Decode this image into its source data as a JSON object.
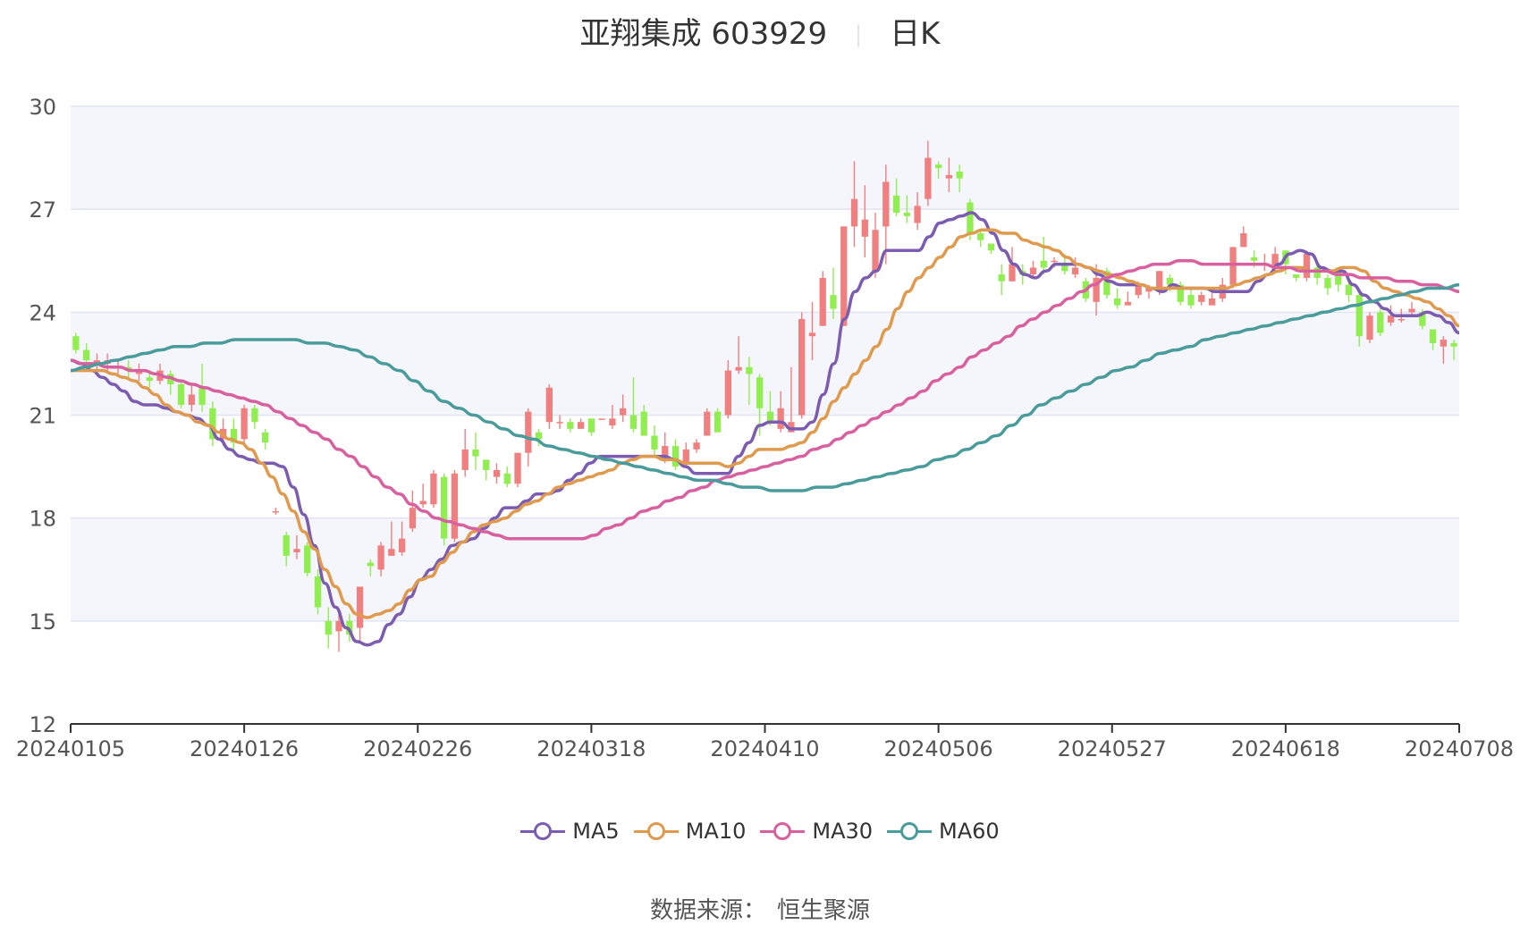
{
  "header": {
    "name": "亚翔集成 603929",
    "period": "日K"
  },
  "source": {
    "label": "数据来源：",
    "value": "恒生聚源"
  },
  "chart_data": {
    "type": "candlestick",
    "y_ticks": [
      12,
      15,
      18,
      21,
      24,
      27,
      30
    ],
    "ylim": [
      12,
      30
    ],
    "x_tick_labels": [
      "20240105",
      "20240126",
      "20240226",
      "20240318",
      "20240410",
      "20240506",
      "20240527",
      "20240618",
      "20240708"
    ],
    "colors": {
      "up": "#f08080",
      "down": "#90ee50",
      "band": "#f5f6fb",
      "grid": "#e0e3f3",
      "axis": "#333333"
    },
    "candles": [
      [
        23.3,
        22.9,
        23.4,
        22.8
      ],
      [
        22.9,
        22.6,
        23.1,
        22.4
      ],
      [
        22.5,
        22.6,
        22.8,
        22.3
      ],
      [
        22.5,
        22.6,
        22.8,
        22.3
      ],
      [
        22.4,
        22.4,
        22.6,
        22.2
      ],
      [
        22.4,
        22.3,
        22.6,
        22.1
      ],
      [
        22.2,
        22.3,
        22.5,
        22.0
      ],
      [
        22.1,
        22.0,
        22.3,
        21.8
      ],
      [
        22.0,
        22.3,
        22.5,
        21.9
      ],
      [
        22.2,
        21.9,
        22.3,
        21.6
      ],
      [
        21.9,
        21.3,
        22.0,
        21.2
      ],
      [
        21.3,
        21.6,
        21.9,
        21.1
      ],
      [
        21.8,
        21.3,
        22.5,
        21.1
      ],
      [
        21.2,
        20.3,
        21.4,
        20.1
      ],
      [
        20.3,
        20.6,
        20.9,
        20.1
      ],
      [
        20.6,
        20.2,
        20.9,
        19.9
      ],
      [
        20.3,
        21.2,
        21.3,
        20.1
      ],
      [
        21.2,
        20.8,
        21.3,
        20.6
      ],
      [
        20.5,
        20.2,
        20.6,
        20.0
      ],
      [
        18.2,
        18.2,
        18.3,
        18.1
      ],
      [
        17.5,
        16.9,
        17.6,
        16.6
      ],
      [
        17.0,
        17.1,
        17.5,
        16.8
      ],
      [
        17.2,
        16.4,
        17.3,
        16.3
      ],
      [
        16.3,
        15.4,
        16.5,
        15.2
      ],
      [
        15.0,
        14.6,
        15.4,
        14.2
      ],
      [
        14.7,
        15.0,
        15.2,
        14.1
      ],
      [
        15.0,
        14.6,
        15.2,
        14.4
      ],
      [
        14.8,
        16.0,
        16.0,
        14.4
      ],
      [
        16.7,
        16.6,
        16.8,
        16.3
      ],
      [
        16.5,
        17.2,
        17.3,
        16.3
      ],
      [
        16.9,
        17.1,
        17.9,
        16.9
      ],
      [
        17.0,
        17.4,
        17.9,
        16.9
      ],
      [
        17.7,
        18.3,
        18.8,
        17.6
      ],
      [
        18.4,
        18.5,
        19.0,
        18.3
      ],
      [
        18.4,
        19.3,
        19.4,
        18.3
      ],
      [
        19.2,
        17.4,
        19.3,
        17.2
      ],
      [
        17.4,
        19.3,
        19.4,
        17.3
      ],
      [
        19.4,
        20.0,
        20.6,
        19.2
      ],
      [
        20.0,
        19.8,
        20.5,
        19.4
      ],
      [
        19.7,
        19.4,
        19.7,
        19.1
      ],
      [
        19.2,
        19.4,
        19.6,
        19.0
      ],
      [
        19.3,
        19.0,
        19.5,
        18.9
      ],
      [
        19.0,
        19.9,
        19.9,
        18.9
      ],
      [
        19.9,
        21.1,
        21.2,
        19.5
      ],
      [
        20.5,
        20.3,
        20.6,
        20.1
      ],
      [
        20.8,
        21.8,
        21.9,
        20.6
      ],
      [
        20.8,
        20.8,
        21.0,
        20.6
      ],
      [
        20.8,
        20.6,
        20.9,
        20.5
      ],
      [
        20.6,
        20.8,
        20.9,
        20.6
      ],
      [
        20.9,
        20.5,
        20.9,
        20.4
      ],
      [
        20.9,
        20.9,
        20.9,
        20.9
      ],
      [
        20.7,
        20.9,
        21.3,
        20.6
      ],
      [
        21.0,
        21.2,
        21.6,
        20.8
      ],
      [
        21.0,
        20.6,
        22.1,
        20.5
      ],
      [
        21.1,
        20.4,
        21.3,
        20.4
      ],
      [
        20.4,
        20.0,
        20.7,
        19.8
      ],
      [
        19.7,
        20.1,
        20.5,
        19.6
      ],
      [
        20.1,
        19.5,
        20.3,
        19.4
      ],
      [
        19.6,
        20.0,
        20.2,
        19.5
      ],
      [
        20.0,
        20.2,
        20.3,
        19.9
      ],
      [
        20.4,
        21.1,
        21.2,
        20.4
      ],
      [
        21.1,
        20.5,
        21.2,
        20.5
      ],
      [
        21.0,
        22.3,
        22.6,
        20.9
      ],
      [
        22.3,
        22.4,
        23.3,
        22.2
      ],
      [
        22.4,
        22.2,
        22.7,
        21.3
      ],
      [
        22.1,
        21.2,
        22.2,
        20.4
      ],
      [
        21.1,
        20.8,
        21.7,
        20.7
      ],
      [
        20.6,
        21.2,
        21.7,
        20.5
      ],
      [
        20.5,
        20.8,
        22.4,
        20.6
      ],
      [
        21.0,
        23.8,
        24.0,
        20.9
      ],
      [
        23.3,
        23.4,
        24.3,
        22.6
      ],
      [
        23.6,
        25.0,
        25.2,
        23.6
      ],
      [
        24.5,
        24.1,
        25.3,
        23.8
      ],
      [
        23.6,
        26.5,
        26.5,
        23.6
      ],
      [
        26.5,
        27.3,
        28.4,
        25.9
      ],
      [
        26.2,
        26.7,
        27.7,
        25.6
      ],
      [
        25.2,
        26.4,
        26.9,
        25.0
      ],
      [
        26.5,
        27.8,
        28.3,
        25.4
      ],
      [
        27.4,
        26.9,
        27.9,
        26.8
      ],
      [
        26.9,
        26.8,
        27.4,
        26.6
      ],
      [
        26.6,
        27.1,
        27.5,
        26.4
      ],
      [
        27.3,
        28.5,
        29.0,
        27.1
      ],
      [
        28.3,
        28.2,
        28.4,
        27.9
      ],
      [
        27.9,
        28.0,
        28.5,
        27.5
      ],
      [
        28.1,
        27.9,
        28.3,
        27.5
      ],
      [
        27.2,
        26.3,
        27.3,
        26.1
      ],
      [
        26.3,
        26.1,
        26.4,
        25.9
      ],
      [
        26.0,
        25.8,
        26.0,
        25.7
      ],
      [
        25.1,
        24.9,
        25.4,
        24.5
      ],
      [
        24.9,
        25.4,
        25.9,
        24.9
      ],
      [
        25.2,
        25.1,
        25.4,
        24.8
      ],
      [
        25.1,
        25.3,
        25.5,
        25.0
      ],
      [
        25.5,
        25.3,
        26.2,
        25.1
      ],
      [
        25.5,
        25.5,
        25.6,
        25.3
      ],
      [
        25.4,
        25.2,
        25.7,
        25.1
      ],
      [
        25.1,
        25.3,
        25.6,
        25.0
      ],
      [
        24.9,
        24.4,
        25.0,
        24.3
      ],
      [
        24.3,
        25.0,
        25.4,
        23.9
      ],
      [
        25.2,
        24.5,
        25.3,
        24.4
      ],
      [
        24.4,
        24.2,
        24.7,
        24.1
      ],
      [
        24.2,
        24.3,
        24.6,
        24.2
      ],
      [
        24.5,
        24.8,
        24.9,
        24.4
      ],
      [
        24.6,
        24.7,
        24.8,
        24.4
      ],
      [
        24.6,
        25.2,
        25.2,
        24.5
      ],
      [
        25.0,
        24.8,
        25.1,
        24.6
      ],
      [
        24.8,
        24.3,
        24.9,
        24.2
      ],
      [
        24.5,
        24.2,
        24.7,
        24.1
      ],
      [
        24.3,
        24.5,
        24.6,
        24.2
      ],
      [
        24.2,
        24.4,
        24.6,
        24.2
      ],
      [
        24.4,
        24.8,
        25.0,
        24.3
      ],
      [
        24.8,
        25.9,
        25.9,
        24.7
      ],
      [
        25.9,
        26.3,
        26.5,
        25.9
      ],
      [
        25.6,
        25.5,
        25.8,
        25.3
      ],
      [
        25.4,
        25.4,
        25.7,
        25.2
      ],
      [
        25.3,
        25.7,
        25.9,
        25.2
      ],
      [
        25.8,
        25.4,
        25.8,
        25.1
      ],
      [
        25.1,
        25.0,
        25.1,
        24.9
      ],
      [
        25.0,
        25.7,
        25.8,
        24.9
      ],
      [
        25.3,
        25.0,
        25.5,
        24.8
      ],
      [
        25.0,
        24.7,
        25.1,
        24.5
      ],
      [
        25.3,
        24.8,
        25.3,
        24.6
      ],
      [
        24.8,
        24.5,
        24.9,
        24.3
      ],
      [
        24.5,
        23.3,
        24.6,
        23.0
      ],
      [
        23.2,
        23.9,
        24.0,
        23.1
      ],
      [
        24.0,
        23.4,
        24.1,
        23.3
      ],
      [
        23.7,
        23.9,
        24.2,
        23.6
      ],
      [
        23.8,
        23.8,
        24.1,
        23.7
      ],
      [
        24.0,
        24.1,
        24.3,
        23.9
      ],
      [
        24.0,
        23.6,
        24.1,
        23.5
      ],
      [
        23.5,
        23.1,
        23.5,
        22.9
      ],
      [
        23.0,
        23.2,
        23.3,
        22.5
      ],
      [
        23.1,
        23.0,
        23.2,
        22.6
      ]
    ],
    "series": [
      {
        "name": "MA5",
        "color": "#7b5cb0",
        "values": [
          22.6,
          22.5,
          22.3,
          22.1,
          21.9,
          21.7,
          21.4,
          21.3,
          21.3,
          21.2,
          21.1,
          21.0,
          20.9,
          20.7,
          20.3,
          20.0,
          19.8,
          19.7,
          19.6,
          19.6,
          19.5,
          18.9,
          18.1,
          17.2,
          16.1,
          15.4,
          14.8,
          14.4,
          14.3,
          14.4,
          14.9,
          15.2,
          15.7,
          16.2,
          16.5,
          16.8,
          17.2,
          17.3,
          17.4,
          17.7,
          18.0,
          18.3,
          18.3,
          18.5,
          18.7,
          18.7,
          18.8,
          19.1,
          19.3,
          19.6,
          19.8,
          19.8,
          19.8,
          19.8,
          19.8,
          19.8,
          19.8,
          19.7,
          19.5,
          19.3,
          19.3,
          19.3,
          19.3,
          19.8,
          20.2,
          20.7,
          20.8,
          20.8,
          20.6,
          20.6,
          20.8,
          21.6,
          22.5,
          23.8,
          24.6,
          25.0,
          25.2,
          25.8,
          25.8,
          25.8,
          25.8,
          26.2,
          26.6,
          26.7,
          26.8,
          26.9,
          26.7,
          26.3,
          25.8,
          25.4,
          25.1,
          25.0,
          25.2,
          25.4,
          25.4,
          25.4,
          25.3,
          25.1,
          24.9,
          24.8,
          24.8,
          24.8,
          24.7,
          24.6,
          24.8,
          24.7,
          24.7,
          24.7,
          24.6,
          24.6,
          24.6,
          24.6,
          24.9,
          25.1,
          25.4,
          25.7,
          25.8,
          25.7,
          25.3,
          25.2,
          25.2,
          24.8,
          24.5,
          24.3,
          24.1,
          23.9,
          23.9,
          23.9,
          24.0,
          23.9,
          23.7,
          23.4
        ]
      },
      {
        "name": "MA10",
        "color": "#e09a4e",
        "values": [
          22.3,
          22.3,
          22.3,
          22.3,
          22.2,
          22.1,
          22.0,
          21.8,
          21.6,
          21.3,
          21.1,
          21.0,
          20.8,
          20.7,
          20.5,
          20.3,
          20.2,
          20.0,
          19.6,
          19.2,
          18.7,
          18.2,
          17.6,
          17.1,
          16.5,
          16.0,
          15.5,
          15.2,
          15.1,
          15.2,
          15.3,
          15.5,
          15.9,
          16.2,
          16.3,
          16.7,
          17.0,
          17.3,
          17.6,
          17.8,
          17.9,
          18.0,
          18.2,
          18.4,
          18.5,
          18.7,
          18.9,
          19.0,
          19.1,
          19.2,
          19.3,
          19.4,
          19.6,
          19.7,
          19.8,
          19.8,
          19.7,
          19.7,
          19.6,
          19.6,
          19.6,
          19.6,
          19.5,
          19.6,
          19.8,
          20.0,
          20.0,
          20.0,
          20.1,
          20.2,
          20.5,
          20.9,
          21.4,
          21.8,
          22.2,
          22.6,
          23.0,
          23.5,
          24.1,
          24.6,
          25.0,
          25.3,
          25.6,
          25.9,
          26.2,
          26.3,
          26.4,
          26.4,
          26.3,
          26.3,
          26.1,
          26.0,
          25.9,
          25.8,
          25.6,
          25.4,
          25.3,
          25.2,
          25.1,
          25.0,
          24.9,
          24.8,
          24.7,
          24.7,
          24.7,
          24.7,
          24.7,
          24.7,
          24.7,
          24.7,
          24.8,
          24.9,
          25.0,
          25.1,
          25.2,
          25.3,
          25.3,
          25.2,
          25.2,
          25.2,
          25.3,
          25.3,
          25.2,
          24.9,
          24.7,
          24.6,
          24.5,
          24.4,
          24.3,
          24.1,
          23.9,
          23.6
        ]
      },
      {
        "name": "MA30",
        "color": "#d9609f",
        "values": [
          22.6,
          22.5,
          22.5,
          22.4,
          22.4,
          22.3,
          22.3,
          22.2,
          22.1,
          22.0,
          21.9,
          21.8,
          21.7,
          21.6,
          21.5,
          21.4,
          21.3,
          21.1,
          20.9,
          20.7,
          20.5,
          20.3,
          20.0,
          19.8,
          19.5,
          19.2,
          18.9,
          18.7,
          18.4,
          18.2,
          18.0,
          17.9,
          17.8,
          17.7,
          17.6,
          17.5,
          17.4,
          17.4,
          17.4,
          17.4,
          17.4,
          17.4,
          17.4,
          17.5,
          17.7,
          17.8,
          18.0,
          18.2,
          18.3,
          18.5,
          18.6,
          18.8,
          18.9,
          19.1,
          19.2,
          19.3,
          19.4,
          19.5,
          19.6,
          19.7,
          19.8,
          20.0,
          20.1,
          20.3,
          20.5,
          20.7,
          20.9,
          21.1,
          21.3,
          21.5,
          21.7,
          22.0,
          22.2,
          22.4,
          22.7,
          22.9,
          23.1,
          23.3,
          23.6,
          23.8,
          24.0,
          24.2,
          24.4,
          24.6,
          24.8,
          25.0,
          25.1,
          25.2,
          25.3,
          25.4,
          25.4,
          25.5,
          25.5,
          25.4,
          25.4,
          25.4,
          25.4,
          25.4,
          25.4,
          25.3,
          25.3,
          25.2,
          25.2,
          25.2,
          25.1,
          25.1,
          25.0,
          25.0,
          25.0,
          24.9,
          24.9,
          24.8,
          24.8,
          24.7,
          24.6
        ]
      },
      {
        "name": "MA60",
        "color": "#4a9b9b",
        "values": [
          22.3,
          22.4,
          22.5,
          22.6,
          22.7,
          22.8,
          22.9,
          23.0,
          23.0,
          23.1,
          23.1,
          23.2,
          23.2,
          23.2,
          23.2,
          23.2,
          23.1,
          23.1,
          23.0,
          22.9,
          22.7,
          22.5,
          22.3,
          22.0,
          21.7,
          21.4,
          21.2,
          21.0,
          20.8,
          20.6,
          20.4,
          20.3,
          20.1,
          20.0,
          19.9,
          19.8,
          19.7,
          19.6,
          19.5,
          19.4,
          19.3,
          19.2,
          19.1,
          19.1,
          19.0,
          18.9,
          18.9,
          18.8,
          18.8,
          18.8,
          18.9,
          18.9,
          19.0,
          19.1,
          19.2,
          19.3,
          19.4,
          19.5,
          19.7,
          19.8,
          20.0,
          20.2,
          20.4,
          20.7,
          21.0,
          21.3,
          21.5,
          21.7,
          21.9,
          22.1,
          22.3,
          22.4,
          22.6,
          22.8,
          22.9,
          23.0,
          23.2,
          23.3,
          23.4,
          23.5,
          23.6,
          23.7,
          23.8,
          23.9,
          24.0,
          24.1,
          24.2,
          24.3,
          24.4,
          24.5,
          24.6,
          24.7,
          24.7,
          24.8
        ]
      }
    ]
  }
}
